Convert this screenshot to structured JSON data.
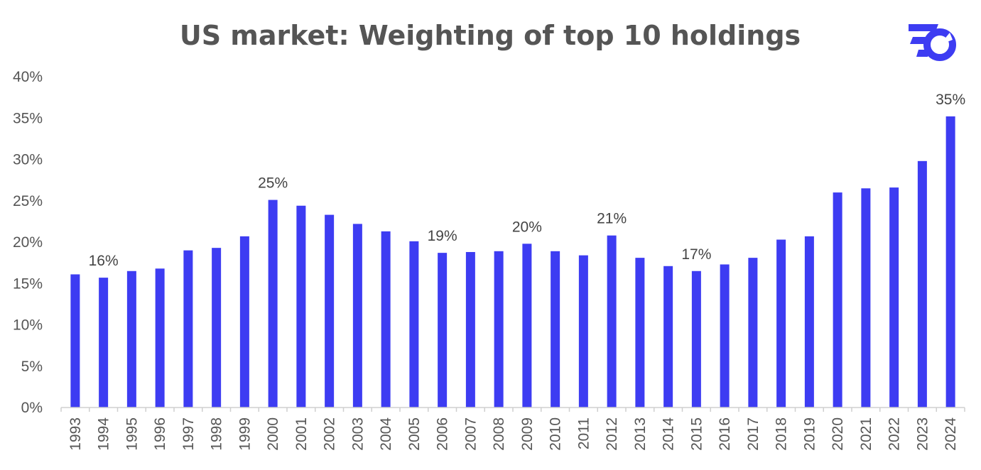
{
  "chart_data": {
    "type": "bar",
    "title": "US market: Weighting of top 10 holdings",
    "xlabel": "",
    "ylabel": "",
    "categories": [
      "1993",
      "1994",
      "1995",
      "1996",
      "1997",
      "1998",
      "1999",
      "2000",
      "2001",
      "2002",
      "2003",
      "2004",
      "2005",
      "2006",
      "2007",
      "2008",
      "2009",
      "2010",
      "2011",
      "2012",
      "2013",
      "2014",
      "2015",
      "2016",
      "2017",
      "2018",
      "2019",
      "2020",
      "2021",
      "2022",
      "2023",
      "2024"
    ],
    "values": [
      16.1,
      15.7,
      16.5,
      16.8,
      19.0,
      19.3,
      20.7,
      25.1,
      24.4,
      23.3,
      22.2,
      21.3,
      20.1,
      18.7,
      18.8,
      18.9,
      19.8,
      18.9,
      18.4,
      20.8,
      18.1,
      17.1,
      16.5,
      17.3,
      18.1,
      20.3,
      20.7,
      26.0,
      26.5,
      26.6,
      29.8,
      35.2
    ],
    "data_labels": [
      {
        "category": "1994",
        "text": "16%"
      },
      {
        "category": "2000",
        "text": "25%"
      },
      {
        "category": "2006",
        "text": "19%"
      },
      {
        "category": "2009",
        "text": "20%"
      },
      {
        "category": "2012",
        "text": "21%"
      },
      {
        "category": "2015",
        "text": "17%"
      },
      {
        "category": "2024",
        "text": "35%"
      }
    ],
    "y_ticks": [
      "0%",
      "5%",
      "10%",
      "15%",
      "20%",
      "25%",
      "30%",
      "35%",
      "40%"
    ],
    "y_tick_values": [
      0,
      5,
      10,
      15,
      20,
      25,
      30,
      35,
      40
    ],
    "ylim": [
      0,
      40
    ],
    "grid": false,
    "legend": "none",
    "bar_color": "#3d3cf2"
  },
  "logo": {
    "icon": "brand-logo-icon",
    "color": "#3d3cf2"
  }
}
